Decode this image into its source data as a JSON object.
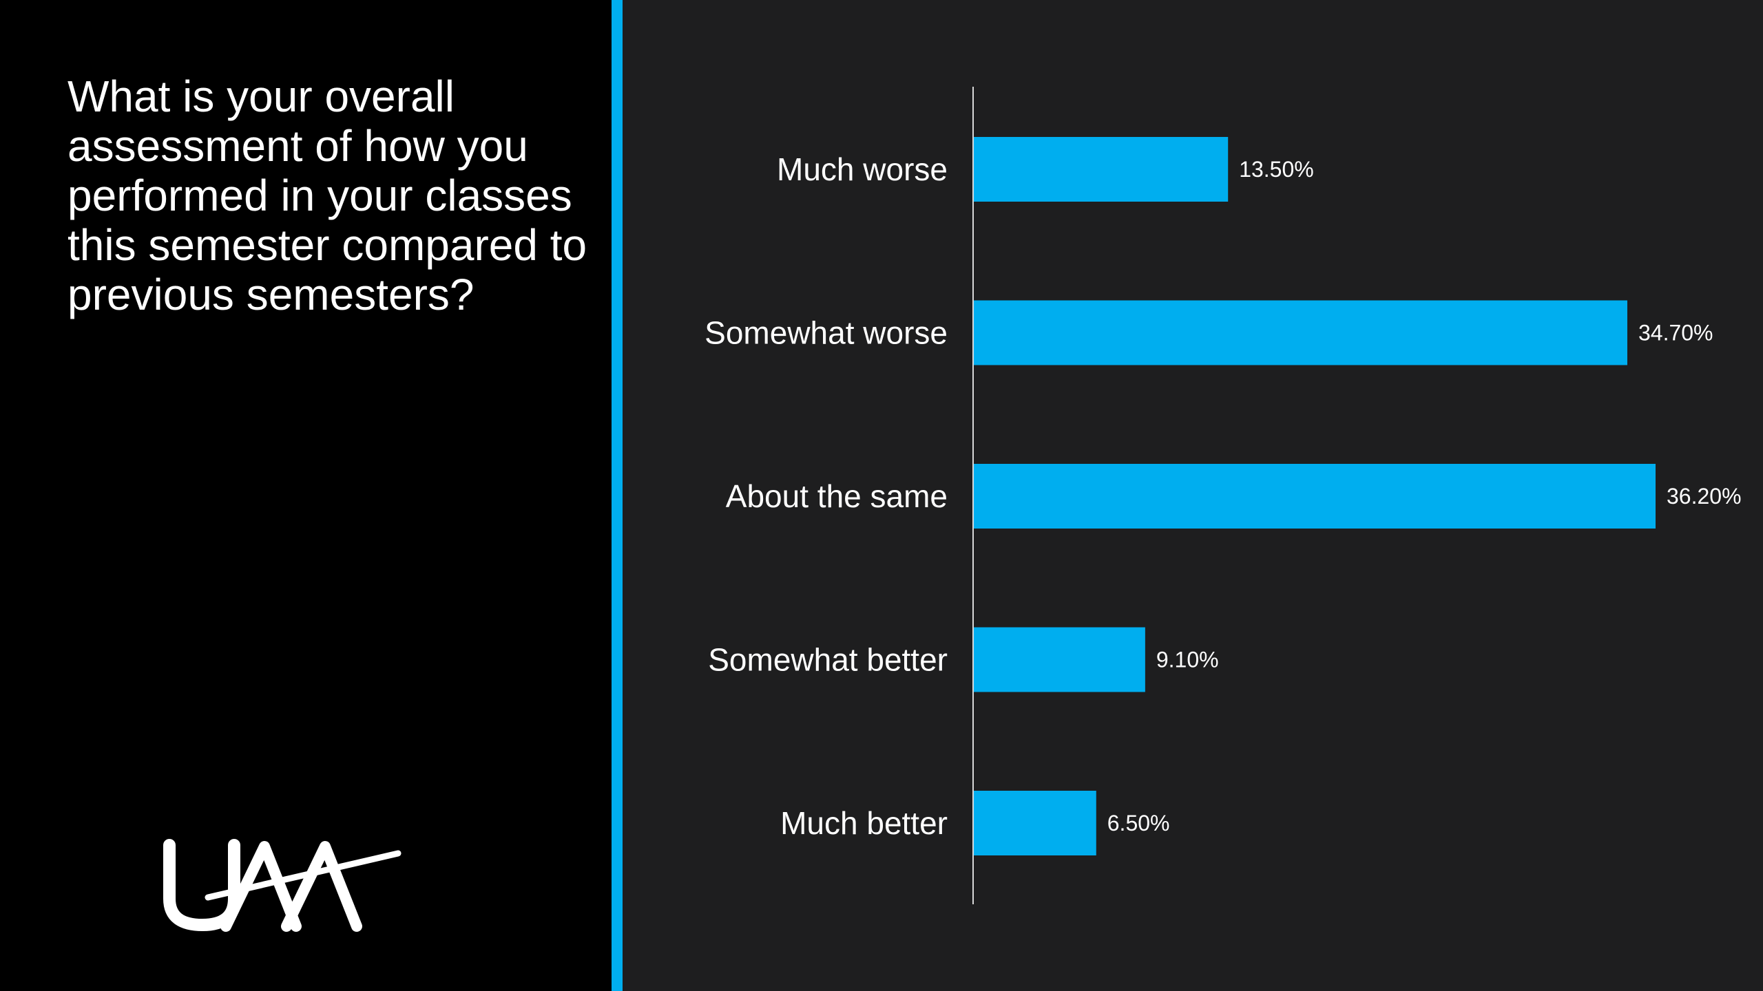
{
  "question": "What is your overall assessment of how you performed in your classes this semester compared to previous semesters?",
  "logo": {
    "text": "UAA"
  },
  "colors": {
    "accent": "#00aeef",
    "bar": "#00aeef",
    "left_background": "#000000",
    "chart_background": "#1e1e1f",
    "text": "#ffffff"
  },
  "chart_data": {
    "type": "bar",
    "orientation": "horizontal",
    "title": "",
    "xlabel": "",
    "ylabel": "",
    "categories": [
      "Much worse",
      "Somewhat worse",
      "About the same",
      "Somewhat better",
      "Much better"
    ],
    "values": [
      13.5,
      34.7,
      36.2,
      9.1,
      6.5
    ],
    "data_labels": [
      "13.50%",
      "34.70%",
      "36.20%",
      "9.10%",
      "6.50%"
    ],
    "unit": "%",
    "xlim": [
      0,
      36.2
    ],
    "grid": false,
    "legend": "none"
  }
}
